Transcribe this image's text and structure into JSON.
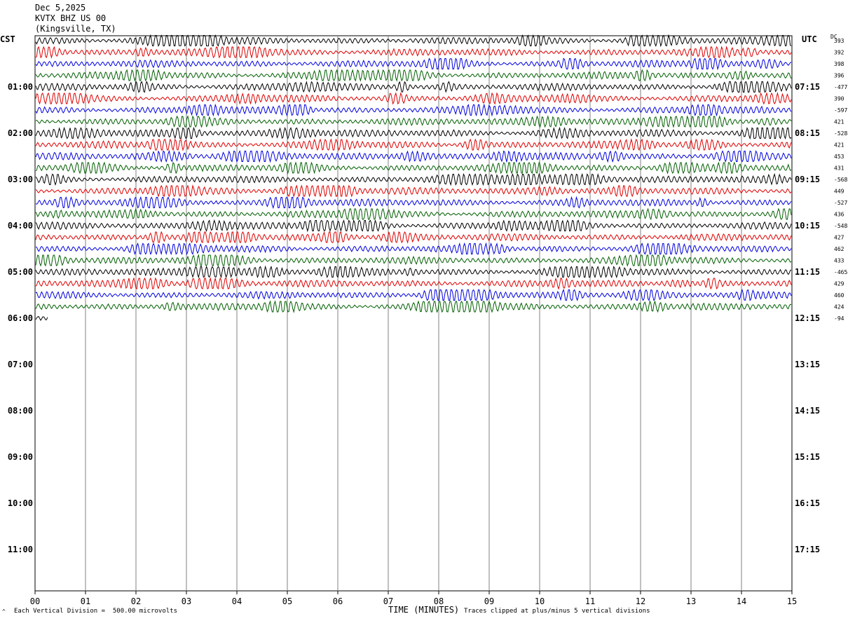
{
  "header": {
    "date": "Dec 5,2025",
    "station": "KVTX BHZ US 00",
    "location": "(Kingsville, TX)"
  },
  "left_axis_label": "CST",
  "right_axis_label": "UTC",
  "dc_label": "DC",
  "footer": {
    "scale_note": "Each Vertical Division =  500.00 microvolts",
    "clip_note": "Traces clipped at plus/minus 5 vertical divisions",
    "xlabel": "TIME (MINUTES)"
  },
  "colors": {
    "black": "#000000",
    "red": "#dd0000",
    "blue": "#0000dd",
    "green": "#005f00",
    "grid": "#808080"
  },
  "chart_data": {
    "type": "line",
    "xlabel": "TIME (MINUTES)",
    "x_ticks": [
      "00",
      "01",
      "02",
      "03",
      "04",
      "05",
      "06",
      "07",
      "08",
      "09",
      "10",
      "11",
      "12",
      "13",
      "14",
      "15"
    ],
    "xlim": [
      0,
      15
    ],
    "left_ticks": [
      "01:00",
      "02:00",
      "03:00",
      "04:00",
      "05:00",
      "06:00",
      "07:00",
      "08:00",
      "09:00",
      "10:00",
      "11:00"
    ],
    "right_ticks": [
      "07:15",
      "08:15",
      "09:15",
      "10:15",
      "11:15",
      "12:15",
      "13:15",
      "14:15",
      "15:15",
      "16:15",
      "17:15"
    ],
    "rows_per_hour": 4,
    "minutes_per_row": 15,
    "trace_color_cycle": [
      "black",
      "red",
      "blue",
      "green"
    ],
    "dc_offsets": [
      "393",
      "392",
      "398",
      "396",
      "-477",
      "390",
      "-597",
      "421",
      "-528",
      "421",
      "453",
      "431",
      "-568",
      "449",
      "-527",
      "436",
      "-548",
      "427",
      "462",
      "433",
      "-465",
      "429",
      "460",
      "424",
      "-94"
    ],
    "last_trace_duration_minutes": 0.25,
    "clip_divisions": 5,
    "microvolts_per_division": 500
  }
}
